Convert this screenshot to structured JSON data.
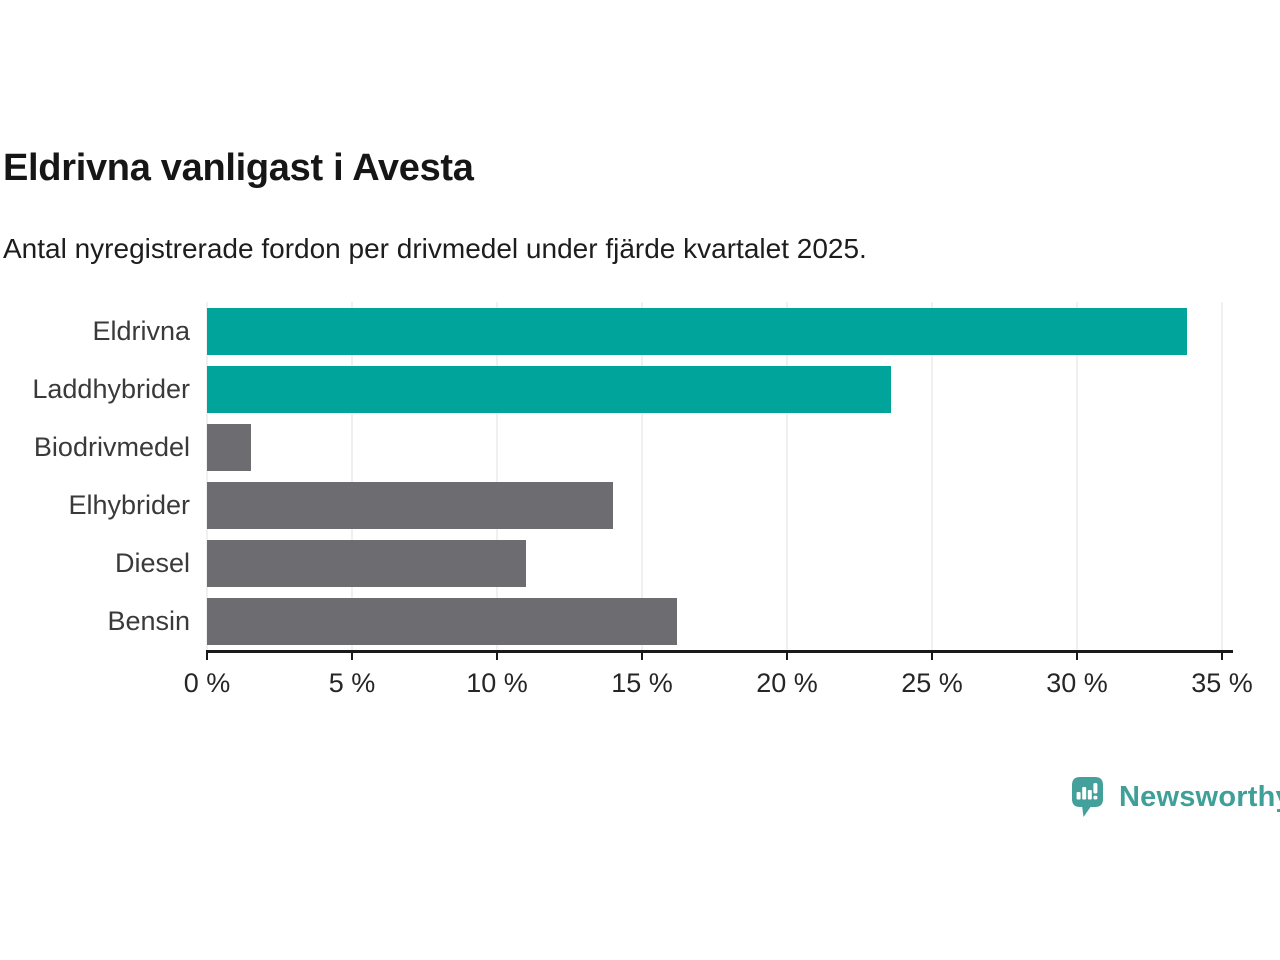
{
  "chart_data": {
    "type": "bar",
    "orientation": "horizontal",
    "title": "Eldrivna vanligast i Avesta",
    "subtitle": "Antal nyregistrerade fordon per drivmedel under fjärde kvartalet 2025.",
    "categories": [
      "Eldrivna",
      "Laddhybrider",
      "Biodrivmedel",
      "Elhybrider",
      "Diesel",
      "Bensin"
    ],
    "values": [
      33.8,
      23.6,
      1.5,
      14.0,
      11.0,
      16.2
    ],
    "unit": "%",
    "bar_colors": [
      "#00a49b",
      "#00a49b",
      "#6c6c71",
      "#6c6c71",
      "#6c6c71",
      "#6c6c71"
    ],
    "colors": {
      "highlight": "#00a49b",
      "default": "#6c6c71"
    },
    "xlim": [
      0,
      35
    ],
    "x_tick_labels": [
      "0 %",
      "5 %",
      "10 %",
      "15 %",
      "20 %",
      "25 %",
      "30 %",
      "35 %"
    ],
    "xlabel": "",
    "ylabel": "",
    "grid": true,
    "legend": false
  },
  "branding": {
    "wordmark": "Newsworthy",
    "logo_icon": "newsworthy-speech-bubble-bar-chart-icon",
    "logo_color": "#43a09a",
    "wordmark_color": "#3f9f99"
  }
}
